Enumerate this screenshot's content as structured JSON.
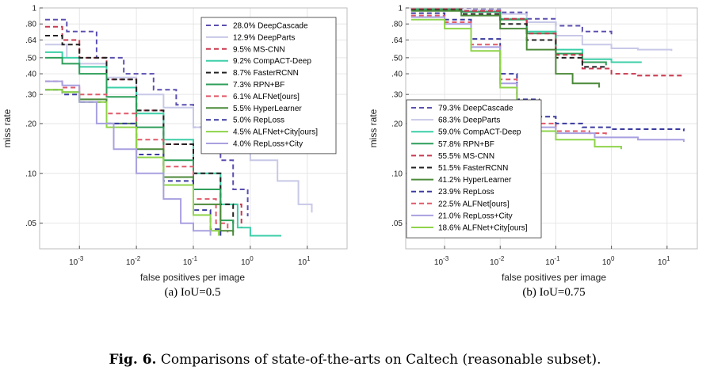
{
  "caption": {
    "label": "Fig. 6.",
    "text": "Comparisons of state-of-the-arts on Caltech (reasonable subset)."
  },
  "chart_data": [
    {
      "type": "line",
      "subcaption": "(a) IoU=0.5",
      "xlabel": "false positives per image",
      "ylabel": "miss rate",
      "xscale": "log",
      "yscale": "log",
      "xlim": [
        0.0002,
        50
      ],
      "ylim": [
        0.035,
        1
      ],
      "xticks": [
        {
          "v": 0.001,
          "base": "10",
          "exp": "-3"
        },
        {
          "v": 0.01,
          "base": "10",
          "exp": "-2"
        },
        {
          "v": 0.1,
          "base": "10",
          "exp": "-1"
        },
        {
          "v": 1,
          "base": "10",
          "exp": "0"
        },
        {
          "v": 10,
          "base": "10",
          "exp": "1"
        }
      ],
      "yticks": [
        {
          "v": 1,
          "label": "1"
        },
        {
          "v": 0.8,
          "label": ".80"
        },
        {
          "v": 0.64,
          "label": ".64"
        },
        {
          "v": 0.5,
          "label": ".50"
        },
        {
          "v": 0.4,
          "label": ".40"
        },
        {
          "v": 0.3,
          "label": ".30"
        },
        {
          "v": 0.2,
          "label": ".20"
        },
        {
          "v": 0.1,
          "label": ".10"
        },
        {
          "v": 0.05,
          "label": ".05"
        }
      ],
      "legend_position": "top-right",
      "series": [
        {
          "name": "28.0% DeepCascade",
          "color": "#5a4fb0",
          "dash": "dash",
          "points": [
            [
              0.00025,
              0.85
            ],
            [
              0.0006,
              0.72
            ],
            [
              0.002,
              0.5
            ],
            [
              0.006,
              0.4
            ],
            [
              0.02,
              0.32
            ],
            [
              0.05,
              0.26
            ],
            [
              0.1,
              0.19
            ],
            [
              0.3,
              0.12
            ],
            [
              0.5,
              0.08
            ],
            [
              0.9,
              0.055
            ]
          ]
        },
        {
          "name": "12.9% DeepParts",
          "color": "#c8c8e8",
          "dash": "solid",
          "points": [
            [
              0.00025,
              0.6
            ],
            [
              0.0006,
              0.5
            ],
            [
              0.001,
              0.46
            ],
            [
              0.003,
              0.38
            ],
            [
              0.01,
              0.3
            ],
            [
              0.03,
              0.25
            ],
            [
              0.1,
              0.19
            ],
            [
              0.3,
              0.15
            ],
            [
              1,
              0.12
            ],
            [
              3,
              0.09
            ],
            [
              7,
              0.065
            ],
            [
              12,
              0.058
            ]
          ]
        },
        {
          "name": "9.5% MS-CNN",
          "color": "#c8384e",
          "dash": "dash",
          "points": [
            [
              0.00025,
              0.77
            ],
            [
              0.0005,
              0.64
            ],
            [
              0.001,
              0.5
            ],
            [
              0.003,
              0.37
            ],
            [
              0.01,
              0.24
            ],
            [
              0.03,
              0.15
            ],
            [
              0.1,
              0.1
            ],
            [
              0.3,
              0.065
            ],
            [
              0.7,
              0.047
            ]
          ]
        },
        {
          "name": "9.2% CompACT-Deep",
          "color": "#3ccfa8",
          "dash": "solid",
          "points": [
            [
              0.00025,
              0.54
            ],
            [
              0.0005,
              0.5
            ],
            [
              0.001,
              0.44
            ],
            [
              0.003,
              0.33
            ],
            [
              0.01,
              0.23
            ],
            [
              0.03,
              0.16
            ],
            [
              0.1,
              0.1
            ],
            [
              0.3,
              0.065
            ],
            [
              0.6,
              0.047
            ],
            [
              1,
              0.042
            ],
            [
              3.5,
              0.042
            ]
          ]
        },
        {
          "name": "8.7% FasterRCNN",
          "color": "#222222",
          "dash": "dash",
          "points": [
            [
              0.00025,
              0.68
            ],
            [
              0.0005,
              0.6
            ],
            [
              0.001,
              0.5
            ],
            [
              0.003,
              0.37
            ],
            [
              0.01,
              0.24
            ],
            [
              0.03,
              0.15
            ],
            [
              0.1,
              0.1
            ],
            [
              0.3,
              0.065
            ],
            [
              0.5,
              0.05
            ]
          ]
        },
        {
          "name": "7.3% RPN+BF",
          "color": "#2e9e5a",
          "dash": "solid",
          "points": [
            [
              0.00025,
              0.5
            ],
            [
              0.0005,
              0.46
            ],
            [
              0.001,
              0.4
            ],
            [
              0.003,
              0.29
            ],
            [
              0.01,
              0.19
            ],
            [
              0.03,
              0.12
            ],
            [
              0.1,
              0.08
            ],
            [
              0.3,
              0.052
            ],
            [
              0.5,
              0.044
            ]
          ]
        },
        {
          "name": "6.1% ALFNet[ours]",
          "color": "#e05a6a",
          "dash": "dash",
          "points": [
            [
              0.00025,
              0.36
            ],
            [
              0.0005,
              0.33
            ],
            [
              0.001,
              0.3
            ],
            [
              0.003,
              0.23
            ],
            [
              0.01,
              0.16
            ],
            [
              0.03,
              0.11
            ],
            [
              0.1,
              0.07
            ],
            [
              0.25,
              0.05
            ],
            [
              0.4,
              0.044
            ]
          ]
        },
        {
          "name": "5.5% HyperLearner",
          "color": "#4c8a3a",
          "dash": "solid",
          "points": [
            [
              0.00025,
              0.32
            ],
            [
              0.0005,
              0.31
            ],
            [
              0.001,
              0.28
            ],
            [
              0.003,
              0.2
            ],
            [
              0.01,
              0.14
            ],
            [
              0.03,
              0.095
            ],
            [
              0.1,
              0.065
            ],
            [
              0.3,
              0.045
            ],
            [
              0.5,
              0.042
            ]
          ]
        },
        {
          "name": "5.0% RepLoss",
          "color": "#3a3aa0",
          "dash": "dash",
          "points": [
            [
              0.00025,
              0.32
            ],
            [
              0.0005,
              0.3
            ],
            [
              0.001,
              0.27
            ],
            [
              0.003,
              0.2
            ],
            [
              0.01,
              0.13
            ],
            [
              0.03,
              0.09
            ],
            [
              0.1,
              0.06
            ],
            [
              0.2,
              0.046
            ],
            [
              0.3,
              0.042
            ]
          ]
        },
        {
          "name": "4.5% ALFNet+City[ours]",
          "color": "#8fd44a",
          "dash": "solid",
          "points": [
            [
              0.00025,
              0.32
            ],
            [
              0.0005,
              0.31
            ],
            [
              0.001,
              0.27
            ],
            [
              0.003,
              0.19
            ],
            [
              0.01,
              0.125
            ],
            [
              0.03,
              0.085
            ],
            [
              0.1,
              0.056
            ],
            [
              0.2,
              0.045
            ],
            [
              0.28,
              0.042
            ]
          ]
        },
        {
          "name": "4.0% RepLoss+City",
          "color": "#a8a0e0",
          "dash": "solid",
          "points": [
            [
              0.00025,
              0.36
            ],
            [
              0.0005,
              0.34
            ],
            [
              0.001,
              0.27
            ],
            [
              0.002,
              0.2
            ],
            [
              0.004,
              0.14
            ],
            [
              0.01,
              0.1
            ],
            [
              0.03,
              0.07
            ],
            [
              0.06,
              0.05
            ],
            [
              0.1,
              0.045
            ],
            [
              0.2,
              0.042
            ]
          ]
        }
      ]
    },
    {
      "type": "line",
      "subcaption": "(b) IoU=0.75",
      "xlabel": "false positives per image",
      "ylabel": "miss rate",
      "xscale": "log",
      "yscale": "log",
      "xlim": [
        0.0002,
        35
      ],
      "ylim": [
        0.035,
        1
      ],
      "xticks": [
        {
          "v": 0.001,
          "base": "10",
          "exp": "-3"
        },
        {
          "v": 0.01,
          "base": "10",
          "exp": "-2"
        },
        {
          "v": 0.1,
          "base": "10",
          "exp": "-1"
        },
        {
          "v": 1,
          "base": "10",
          "exp": "0"
        },
        {
          "v": 10,
          "base": "10",
          "exp": "1"
        }
      ],
      "yticks": [
        {
          "v": 1,
          "label": "1"
        },
        {
          "v": 0.8,
          "label": ".80"
        },
        {
          "v": 0.64,
          "label": ".64"
        },
        {
          "v": 0.5,
          "label": ".50"
        },
        {
          "v": 0.4,
          "label": ".40"
        },
        {
          "v": 0.3,
          "label": ".30"
        },
        {
          "v": 0.2,
          "label": ".20"
        },
        {
          "v": 0.1,
          "label": ".10"
        },
        {
          "v": 0.05,
          "label": ".05"
        }
      ],
      "legend_position": "bottom-left",
      "series": [
        {
          "name": "79.3% DeepCascade",
          "color": "#5a4fb0",
          "dash": "dash",
          "points": [
            [
              0.00025,
              1
            ],
            [
              0.003,
              0.98
            ],
            [
              0.01,
              0.94
            ],
            [
              0.03,
              0.86
            ],
            [
              0.1,
              0.78
            ],
            [
              0.3,
              0.72
            ],
            [
              1,
              0.69
            ]
          ]
        },
        {
          "name": "68.3% DeepParts",
          "color": "#c8c8e8",
          "dash": "solid",
          "points": [
            [
              0.00025,
              0.99
            ],
            [
              0.002,
              0.97
            ],
            [
              0.01,
              0.92
            ],
            [
              0.03,
              0.82
            ],
            [
              0.1,
              0.68
            ],
            [
              0.3,
              0.6
            ],
            [
              1,
              0.57
            ],
            [
              3,
              0.56
            ],
            [
              12,
              0.55
            ]
          ]
        },
        {
          "name": "59.0% CompACT-Deep",
          "color": "#3ccfa8",
          "dash": "solid",
          "points": [
            [
              0.00025,
              0.98
            ],
            [
              0.002,
              0.95
            ],
            [
              0.01,
              0.86
            ],
            [
              0.03,
              0.72
            ],
            [
              0.1,
              0.56
            ],
            [
              0.3,
              0.49
            ],
            [
              1,
              0.47
            ],
            [
              3.5,
              0.47
            ]
          ]
        },
        {
          "name": "57.8% RPN+BF",
          "color": "#2e9e5a",
          "dash": "solid",
          "points": [
            [
              0.00025,
              0.98
            ],
            [
              0.002,
              0.95
            ],
            [
              0.01,
              0.85
            ],
            [
              0.03,
              0.7
            ],
            [
              0.1,
              0.53
            ],
            [
              0.3,
              0.47
            ],
            [
              0.8,
              0.45
            ]
          ]
        },
        {
          "name": "55.5% MS-CNN",
          "color": "#c8384e",
          "dash": "dash",
          "points": [
            [
              0.00025,
              0.99
            ],
            [
              0.002,
              0.96
            ],
            [
              0.01,
              0.86
            ],
            [
              0.03,
              0.7
            ],
            [
              0.1,
              0.52
            ],
            [
              0.3,
              0.43
            ],
            [
              1,
              0.4
            ],
            [
              3,
              0.39
            ],
            [
              20,
              0.385
            ]
          ]
        },
        {
          "name": "51.5% FasterRCNN",
          "color": "#222222",
          "dash": "dash",
          "points": [
            [
              0.00025,
              0.97
            ],
            [
              0.002,
              0.92
            ],
            [
              0.01,
              0.8
            ],
            [
              0.03,
              0.64
            ],
            [
              0.1,
              0.5
            ],
            [
              0.3,
              0.44
            ],
            [
              0.8,
              0.43
            ]
          ]
        },
        {
          "name": "41.2% HyperLearner",
          "color": "#4c8a3a",
          "dash": "solid",
          "points": [
            [
              0.00025,
              0.96
            ],
            [
              0.002,
              0.9
            ],
            [
              0.01,
              0.75
            ],
            [
              0.03,
              0.56
            ],
            [
              0.1,
              0.4
            ],
            [
              0.2,
              0.35
            ],
            [
              0.6,
              0.33
            ]
          ]
        },
        {
          "name": "23.9% RepLoss",
          "color": "#3a3aa0",
          "dash": "dash",
          "points": [
            [
              0.00025,
              0.93
            ],
            [
              0.001,
              0.85
            ],
            [
              0.003,
              0.65
            ],
            [
              0.01,
              0.4
            ],
            [
              0.02,
              0.28
            ],
            [
              0.05,
              0.22
            ],
            [
              0.1,
              0.2
            ],
            [
              0.3,
              0.19
            ],
            [
              1,
              0.185
            ],
            [
              20,
              0.18
            ]
          ]
        },
        {
          "name": "22.5% ALFNet[ours]",
          "color": "#e05a6a",
          "dash": "dash",
          "points": [
            [
              0.00025,
              0.9
            ],
            [
              0.001,
              0.82
            ],
            [
              0.003,
              0.6
            ],
            [
              0.01,
              0.37
            ],
            [
              0.02,
              0.26
            ],
            [
              0.05,
              0.2
            ],
            [
              0.1,
              0.18
            ],
            [
              0.4,
              0.175
            ],
            [
              0.8,
              0.17
            ]
          ]
        },
        {
          "name": "21.0% RepLoss+City",
          "color": "#a8a0e0",
          "dash": "solid",
          "points": [
            [
              0.00025,
              0.88
            ],
            [
              0.001,
              0.8
            ],
            [
              0.003,
              0.58
            ],
            [
              0.01,
              0.35
            ],
            [
              0.02,
              0.25
            ],
            [
              0.05,
              0.19
            ],
            [
              0.1,
              0.175
            ],
            [
              0.5,
              0.165
            ],
            [
              3,
              0.16
            ],
            [
              20,
              0.155
            ]
          ]
        },
        {
          "name": "18.6% ALFNet+City[ours]",
          "color": "#8fd44a",
          "dash": "solid",
          "points": [
            [
              0.00025,
              0.85
            ],
            [
              0.001,
              0.75
            ],
            [
              0.003,
              0.55
            ],
            [
              0.01,
              0.33
            ],
            [
              0.02,
              0.23
            ],
            [
              0.05,
              0.18
            ],
            [
              0.1,
              0.16
            ],
            [
              0.5,
              0.145
            ],
            [
              1.5,
              0.14
            ]
          ]
        }
      ]
    }
  ]
}
